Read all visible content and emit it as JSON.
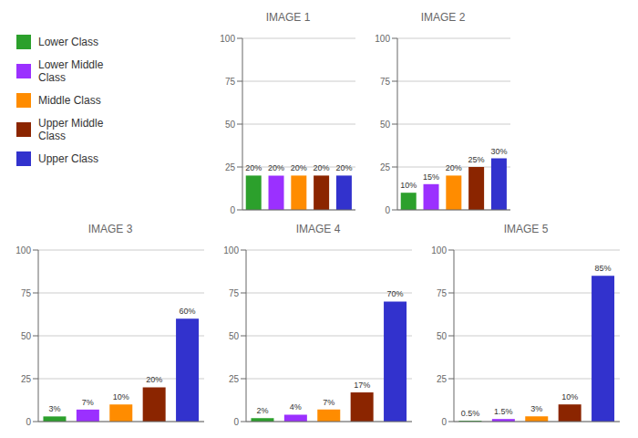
{
  "chart_data": [
    {
      "type": "bar",
      "title": "IMAGE 1",
      "categories": [
        "Lower Class",
        "Lower Middle\nClass",
        "Middle Class",
        "Upper Middle\nClass",
        "Upper Class"
      ],
      "values": [
        20,
        20,
        20,
        20,
        20
      ],
      "value_labels": [
        "20%",
        "20%",
        "20%",
        "20%",
        "20%"
      ],
      "colors": [
        "#2ca02c",
        "#9b30ff",
        "#ff8c00",
        "#8b2500",
        "#3232cd"
      ],
      "ylim": [
        0,
        100
      ],
      "yticks": [
        0,
        25,
        50,
        75,
        100
      ],
      "grid": true,
      "data_labels": true,
      "tick_labels": "y",
      "legend": "upper left"
    },
    {
      "type": "bar",
      "title": "IMAGE 2",
      "categories": [
        "Lower Class",
        "Lower Middle\nClass",
        "Middle Class",
        "Upper Middle\nClass",
        "Upper Class"
      ],
      "values": [
        10,
        15,
        20,
        25,
        30
      ],
      "value_labels": [
        "10%",
        "15%",
        "20%",
        "25%",
        "30%"
      ],
      "colors": [
        "#2ca02c",
        "#9b30ff",
        "#ff8c00",
        "#8b2500",
        "#3232cd"
      ],
      "ylim": [
        0,
        100
      ],
      "yticks": [
        0,
        25,
        50,
        75,
        100
      ],
      "grid": true,
      "data_labels": true,
      "tick_labels": "y"
    },
    {
      "type": "bar",
      "title": "IMAGE 3",
      "categories": [
        "Lower Class",
        "Lower Middle\nClass",
        "Middle Class",
        "Upper Middle\nClass",
        "Upper Class"
      ],
      "values": [
        3,
        7,
        10,
        20,
        60
      ],
      "value_labels": [
        "3%",
        "7%",
        "10%",
        "20%",
        "60%"
      ],
      "colors": [
        "#2ca02c",
        "#9b30ff",
        "#ff8c00",
        "#8b2500",
        "#3232cd"
      ],
      "ylim": [
        0,
        100
      ],
      "yticks": [
        0,
        25,
        50,
        75,
        100
      ],
      "grid": true,
      "data_labels": true,
      "tick_labels": "y"
    },
    {
      "type": "bar",
      "title": "IMAGE 4",
      "categories": [
        "Lower Class",
        "Lower Middle\nClass",
        "Middle Class",
        "Upper Middle\nClass",
        "Upper Class"
      ],
      "values": [
        2,
        4,
        7,
        17,
        70
      ],
      "value_labels": [
        "2%",
        "4%",
        "7%",
        "17%",
        "70%"
      ],
      "colors": [
        "#2ca02c",
        "#9b30ff",
        "#ff8c00",
        "#8b2500",
        "#3232cd"
      ],
      "ylim": [
        0,
        100
      ],
      "yticks": [
        0,
        25,
        50,
        75,
        100
      ],
      "grid": true,
      "data_labels": true,
      "tick_labels": "y"
    },
    {
      "type": "bar",
      "title": "IMAGE 5",
      "categories": [
        "Lower Class",
        "Lower Middle\nClass",
        "Middle Class",
        "Upper Middle\nClass",
        "Upper Class"
      ],
      "values": [
        0.5,
        1.5,
        3,
        10,
        85
      ],
      "value_labels": [
        "0.5%",
        "1.5%",
        "3%",
        "10%",
        "85%"
      ],
      "colors": [
        "#2ca02c",
        "#9b30ff",
        "#ff8c00",
        "#8b2500",
        "#3232cd"
      ],
      "ylim": [
        0,
        100
      ],
      "yticks": [
        0,
        25,
        50,
        75,
        100
      ],
      "grid": true,
      "data_labels": true,
      "tick_labels": "y"
    }
  ]
}
